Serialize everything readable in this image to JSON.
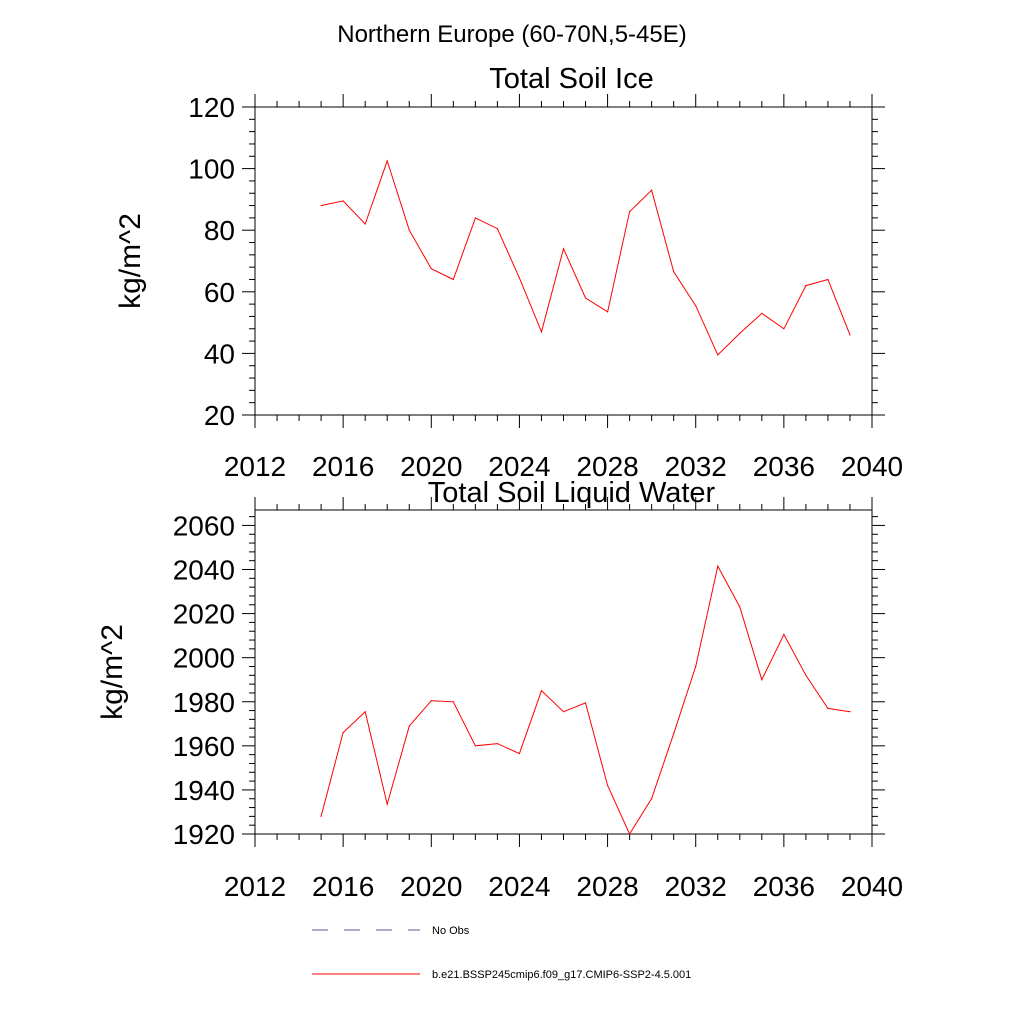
{
  "figure_title": "Northern Europe (60-70N,5-45E)",
  "legend": {
    "items": [
      {
        "label": "No Obs",
        "color": "#5a5a8c",
        "style": "dashed"
      },
      {
        "label": "b.e21.BSSP245cmip6.f09_g17.CMIP6-SSP2-4.5.001",
        "color": "#ff0000",
        "style": "solid"
      }
    ]
  },
  "chart_data": [
    {
      "type": "line",
      "title": "Total Soil Ice",
      "xlabel": "",
      "ylabel": "kg/m^2",
      "xlim": [
        2012,
        2040
      ],
      "ylim": [
        20,
        120
      ],
      "x_ticks": [
        2012,
        2016,
        2020,
        2024,
        2028,
        2032,
        2036,
        2040
      ],
      "y_ticks": [
        20,
        40,
        60,
        80,
        100,
        120
      ],
      "grid": false,
      "x": [
        2015,
        2016,
        2017,
        2018,
        2019,
        2020,
        2021,
        2022,
        2023,
        2024,
        2025,
        2026,
        2027,
        2028,
        2029,
        2030,
        2031,
        2032,
        2033,
        2034,
        2035,
        2036,
        2037,
        2038,
        2039
      ],
      "series": [
        {
          "color": "#ff0000",
          "values": [
            88,
            89.5,
            82,
            102.5,
            80,
            67.5,
            64,
            84,
            80.5,
            64.5,
            47,
            74,
            58,
            53.5,
            86,
            93,
            66.5,
            55.5,
            39.5,
            46.5,
            53,
            48,
            62,
            64,
            46
          ]
        }
      ]
    },
    {
      "type": "line",
      "title": "Total Soil Liquid Water",
      "xlabel": "",
      "ylabel": "kg/m^2",
      "xlim": [
        2012,
        2040
      ],
      "ylim": [
        1920,
        2067
      ],
      "x_ticks": [
        2012,
        2016,
        2020,
        2024,
        2028,
        2032,
        2036,
        2040
      ],
      "y_ticks": [
        1920,
        1940,
        1960,
        1980,
        2000,
        2020,
        2040,
        2060
      ],
      "grid": false,
      "x": [
        2015,
        2016,
        2017,
        2018,
        2019,
        2020,
        2021,
        2022,
        2023,
        2024,
        2025,
        2026,
        2027,
        2028,
        2029,
        2030,
        2031,
        2032,
        2033,
        2034,
        2035,
        2036,
        2037,
        2038,
        2039
      ],
      "series": [
        {
          "color": "#ff0000",
          "values": [
            1928,
            1966,
            1975.5,
            1933.5,
            1969,
            1980.5,
            1980,
            1960,
            1961,
            1956.5,
            1985,
            1975.5,
            1979.5,
            1942,
            1920,
            1936,
            1965.5,
            1996,
            2041.5,
            2023,
            1990,
            2010.5,
            1992,
            1977,
            1975.5
          ]
        }
      ]
    }
  ]
}
